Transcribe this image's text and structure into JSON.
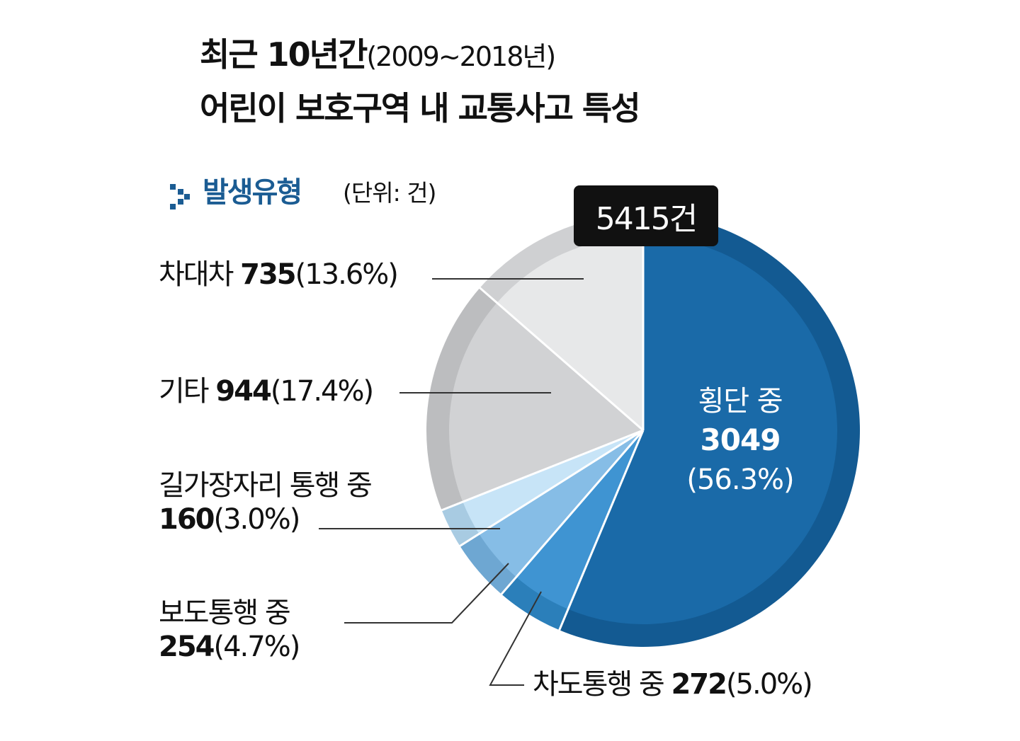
{
  "title": {
    "line1_main": "최근 10년간",
    "line1_sub": "(2009~2018년)",
    "line2": "어린이 보호구역 내 교통사고 특성"
  },
  "section": {
    "label": "발생유형",
    "unit": "(단위: 건)",
    "icon": "chevron-right-icon"
  },
  "total_label": "5415건",
  "colors": {
    "title_blue": "#1b5c93",
    "badge_bg": "#111111",
    "leader_line": "#333333"
  },
  "labels": {
    "crossing": {
      "name": "횡단 중",
      "value": "3049",
      "pct": "(56.3%)"
    },
    "roadway": {
      "name": "차도통행 중",
      "value": "272",
      "pct": "(5.0%)"
    },
    "sidewalk": {
      "name": "보도통행 중",
      "value": "254",
      "pct": "(4.7%)"
    },
    "roadside": {
      "name": "길가장자리 통행 중",
      "value": "160",
      "pct": "(3.0%)"
    },
    "other": {
      "name": "기타",
      "value": "944",
      "pct": "(17.4%)"
    },
    "vehicle": {
      "name": "차대차",
      "value": "735",
      "pct": "(13.6%)"
    }
  },
  "chart_data": {
    "type": "pie",
    "title": "어린이 보호구역 내 교통사고 특성",
    "subtitle": "발생유형",
    "unit": "건",
    "total": 5415,
    "categories": [
      "횡단 중",
      "차도통행 중",
      "보도통행 중",
      "길가장자리 통행 중",
      "기타",
      "차대차"
    ],
    "values": [
      3049,
      272,
      254,
      160,
      944,
      735
    ],
    "percentages": [
      56.3,
      5.0,
      4.7,
      3.0,
      17.4,
      13.6
    ],
    "colors": [
      "#1a6aa8",
      "#3f94d2",
      "#86bde6",
      "#c7e4f7",
      "#d1d2d4",
      "#e7e8e9"
    ],
    "ring_colors": [
      "#135a92",
      "#2b7fba",
      "#6ea7d2",
      "#a8cbe2",
      "#bcbdbf",
      "#cfd0d2"
    ],
    "start": "top",
    "direction": "clockwise"
  }
}
